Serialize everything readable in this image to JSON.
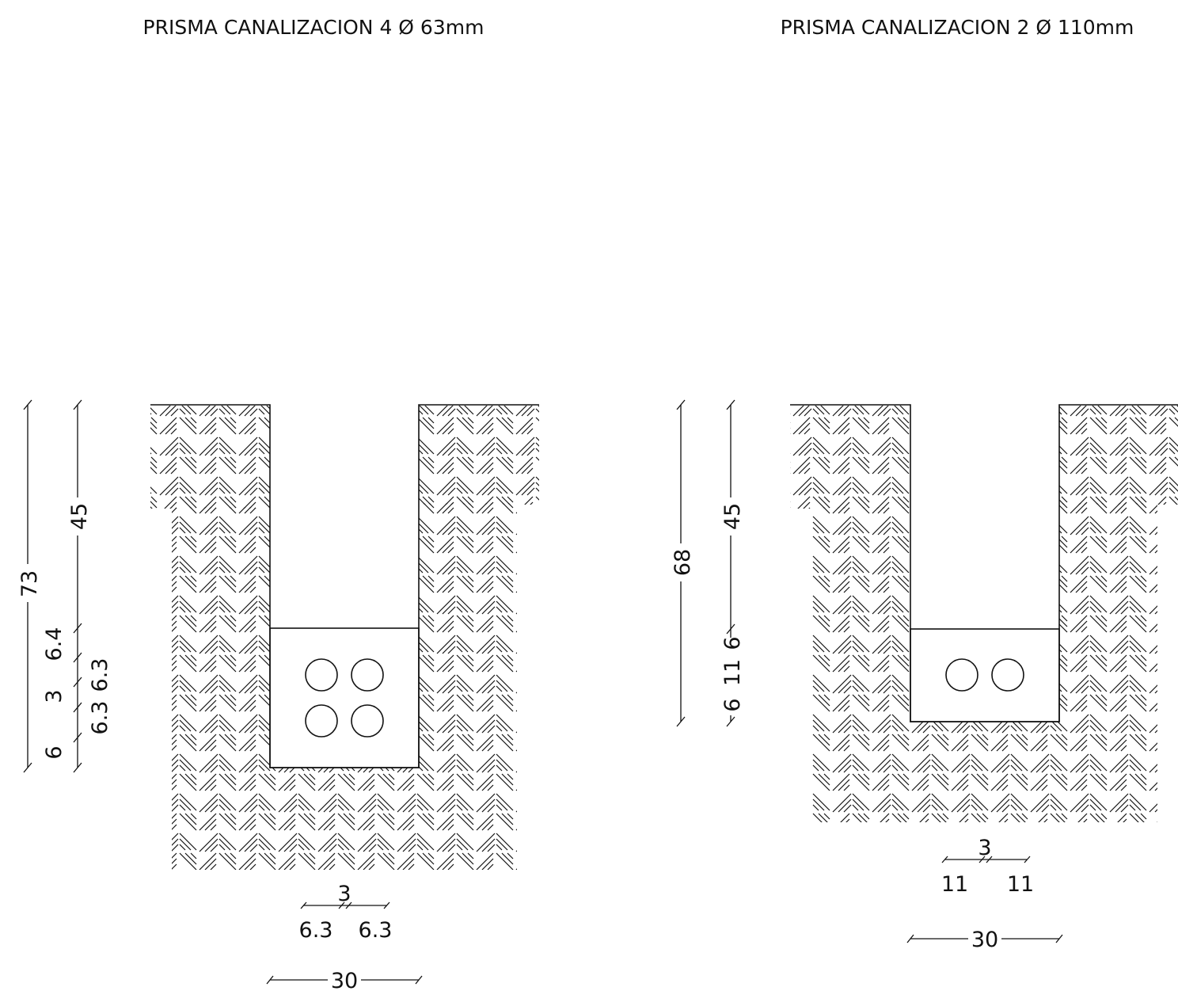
{
  "sections": [
    {
      "id": "left",
      "title": "PRISMA CANALIZACION 4 Ø 63mm",
      "overall_depth": "73",
      "fill_depth": "45",
      "vertical_dims": [
        "6.4",
        "3",
        "6",
        "6.3",
        "6.3"
      ],
      "pipe_gap": "3",
      "pipe_left_dim": "6.3",
      "pipe_right_dim": "6.3",
      "trench_width": "30"
    },
    {
      "id": "right",
      "title": "PRISMA CANALIZACION 2 Ø 110mm",
      "overall_depth": "68",
      "fill_depth": "45",
      "vertical_dims": [
        "6",
        "11",
        "6"
      ],
      "pipe_gap": "3",
      "pipe_left_dim": "11",
      "pipe_right_dim": "11",
      "trench_width": "30"
    }
  ],
  "colors": {
    "ink": "#111111",
    "background": "#ffffff"
  }
}
